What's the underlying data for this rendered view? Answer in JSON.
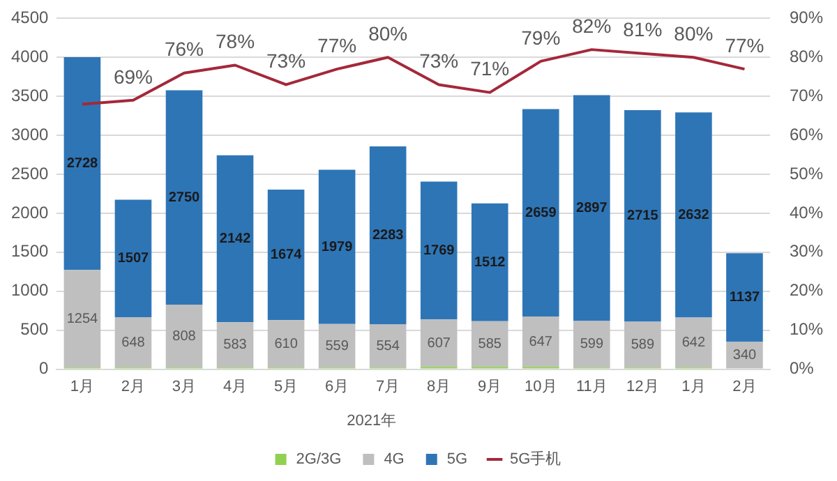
{
  "chart_data": {
    "type": "bar",
    "stacked": true,
    "categories": [
      "1月",
      "2月",
      "3月",
      "4月",
      "5月",
      "6月",
      "7月",
      "8月",
      "9月",
      "10月",
      "11月",
      "12月",
      "1月",
      "2月"
    ],
    "series": [
      {
        "name": "2G/3G",
        "color": "#92d050",
        "values": [
          20,
          20,
          20,
          20,
          20,
          20,
          20,
          30,
          30,
          30,
          20,
          20,
          20,
          10
        ]
      },
      {
        "name": "4G",
        "color": "#bfbfbf",
        "values": [
          1254,
          648,
          808,
          583,
          610,
          559,
          554,
          607,
          585,
          647,
          599,
          589,
          642,
          340
        ],
        "value_labels": [
          "1254",
          "648",
          "808",
          "583",
          "610",
          "559",
          "554",
          "607",
          "585",
          "647",
          "599",
          "589",
          "642",
          "340"
        ]
      },
      {
        "name": "5G",
        "color": "#2e75b6",
        "values": [
          2728,
          1507,
          2750,
          2142,
          1674,
          1979,
          2283,
          1769,
          1512,
          2659,
          2897,
          2715,
          2632,
          1137
        ],
        "value_labels": [
          "2728",
          "1507",
          "2750",
          "2142",
          "1674",
          "1979",
          "2283",
          "1769",
          "1512",
          "2659",
          "2897",
          "2715",
          "2632",
          "1137"
        ]
      },
      {
        "name": "5G手机",
        "type": "line",
        "axis": "y2",
        "color": "#a4283a",
        "values": [
          68,
          69,
          76,
          78,
          73,
          77,
          80,
          73,
          71,
          79,
          82,
          81,
          80,
          77
        ],
        "value_labels": [
          null,
          "69%",
          "76%",
          "78%",
          "73%",
          "77%",
          "80%",
          "73%",
          "71%",
          "79%",
          "82%",
          "81%",
          "80%",
          "77%"
        ]
      }
    ],
    "ylim": [
      0,
      4500
    ],
    "yticks": [
      0,
      500,
      1000,
      1500,
      2000,
      2500,
      3000,
      3500,
      4000,
      4500
    ],
    "y2lim": [
      0,
      90
    ],
    "y2ticks": [
      {
        "value": 0,
        "label": "0%"
      },
      {
        "value": 10,
        "label": "10%"
      },
      {
        "value": 20,
        "label": "20%"
      },
      {
        "value": 30,
        "label": "30%"
      },
      {
        "value": 40,
        "label": "40%"
      },
      {
        "value": 50,
        "label": "50%"
      },
      {
        "value": 60,
        "label": "60%"
      },
      {
        "value": 70,
        "label": "70%"
      },
      {
        "value": 80,
        "label": "80%"
      },
      {
        "value": 90,
        "label": "90%"
      }
    ],
    "grid": "y",
    "legend": "bottom",
    "marker": "none",
    "line_style": "solid",
    "annotations": [
      "2021年"
    ]
  }
}
